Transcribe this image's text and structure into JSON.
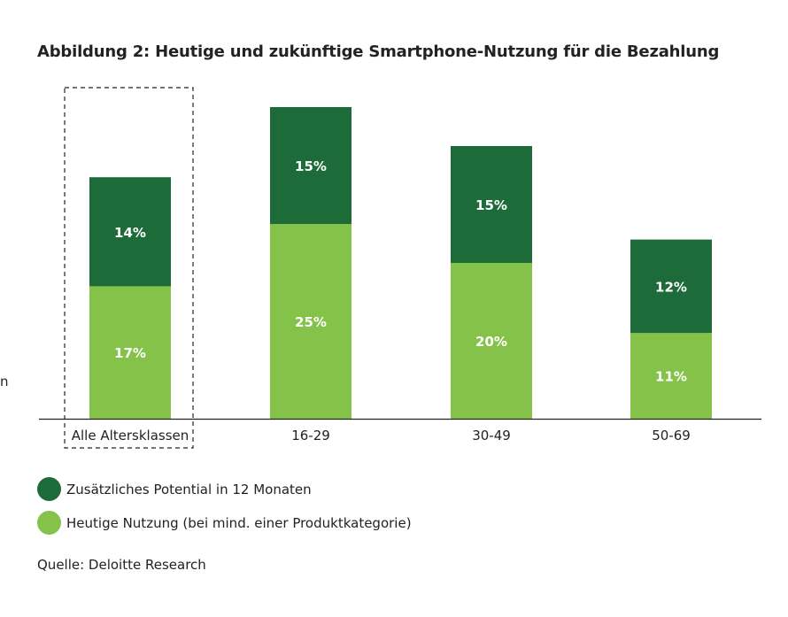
{
  "chart_data": {
    "type": "bar",
    "stacked": true,
    "title": "Abbildung 2: Heutige und zukünftige Smartphone-Nutzung für die Bezahlung",
    "categories": [
      "Alle Altersklassen",
      "16-29",
      "30-49",
      "50-69"
    ],
    "highlighted_category": "Alle Altersklassen",
    "series": [
      {
        "name": "Heutige Nutzung (bei mind. einer Produktkategorie)",
        "color": "#84c24a",
        "values": [
          17,
          25,
          20,
          11
        ],
        "labels": [
          "17%",
          "25%",
          "20%",
          "11%"
        ]
      },
      {
        "name": "Zusätzliches Potential in 12 Monaten",
        "color": "#1e6b3a",
        "values": [
          14,
          15,
          15,
          12
        ],
        "labels": [
          "14%",
          "15%",
          "15%",
          "12%"
        ]
      }
    ],
    "ylim": [
      0,
      42
    ],
    "xlabel": "",
    "ylabel": "",
    "legend_position": "bottom-left"
  },
  "fragment_text": "n",
  "source": "Quelle: Deloitte Research"
}
